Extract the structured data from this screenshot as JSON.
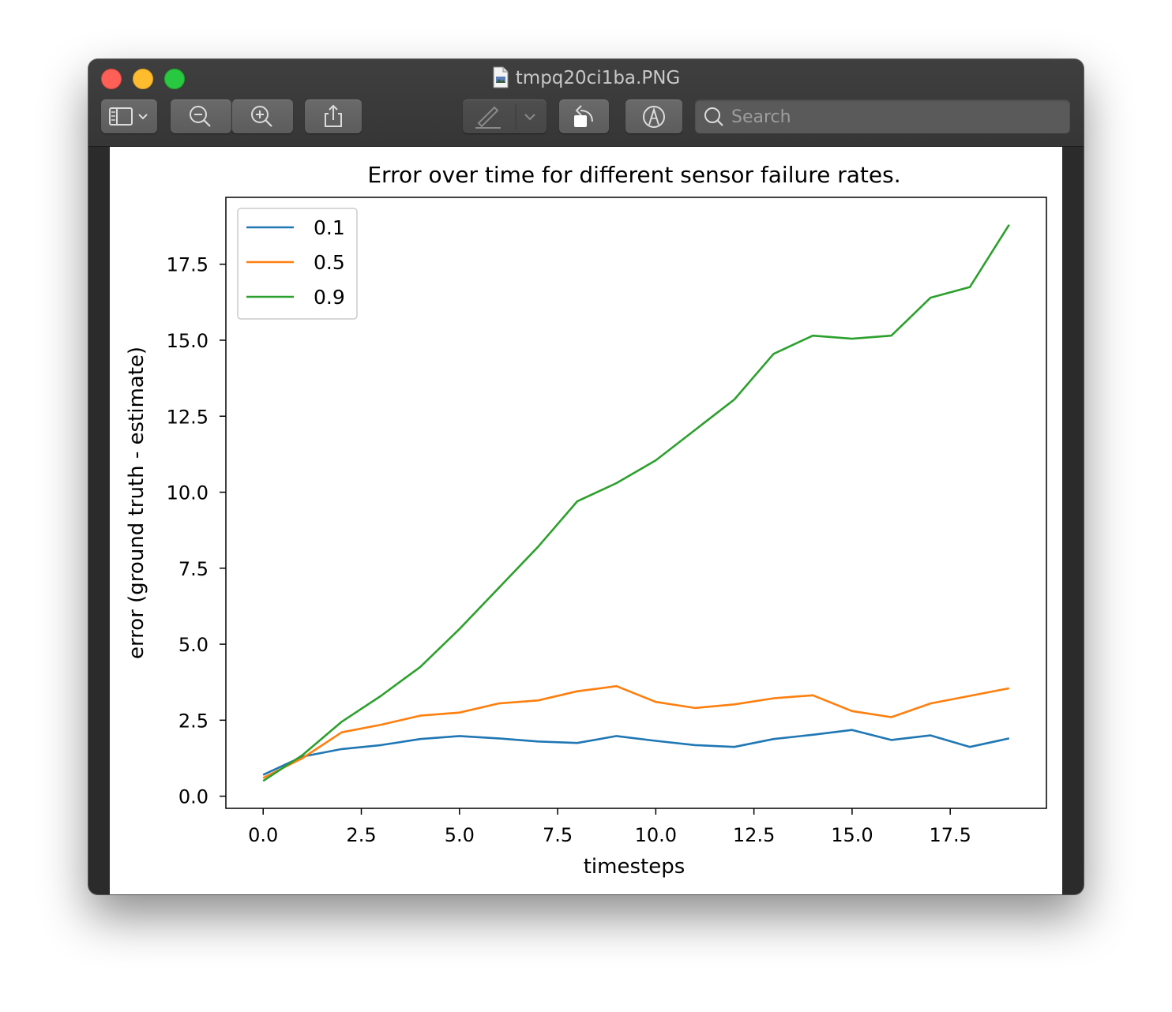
{
  "window": {
    "title": "tmpq20ci1ba.PNG"
  },
  "toolbar": {
    "search_placeholder": "Search",
    "buttons": [
      "sidebar-icon",
      "zoom-out-icon",
      "zoom-in-icon",
      "share-icon",
      "markup-pen-icon",
      "rotate-icon",
      "annotate-icon"
    ]
  },
  "chart_data": {
    "type": "line",
    "title": "Error over time for different sensor failure rates.",
    "xlabel": "timesteps",
    "ylabel": "error (ground truth - estimate)",
    "xlim": [
      -0.95,
      19.95
    ],
    "ylim": [
      -0.4,
      19.7
    ],
    "xticks": [
      "0.0",
      "2.5",
      "5.0",
      "7.5",
      "10.0",
      "12.5",
      "15.0",
      "17.5"
    ],
    "yticks": [
      "0.0",
      "2.5",
      "5.0",
      "7.5",
      "10.0",
      "12.5",
      "15.0",
      "17.5"
    ],
    "legend_position": "upper-left",
    "x": [
      0,
      1,
      2,
      3,
      4,
      5,
      6,
      7,
      8,
      9,
      10,
      11,
      12,
      13,
      14,
      15,
      16,
      17,
      18,
      19
    ],
    "series": [
      {
        "name": "0.1",
        "color": "#1f77b4",
        "values": [
          0.7,
          1.3,
          1.55,
          1.68,
          1.88,
          1.98,
          1.9,
          1.8,
          1.75,
          1.98,
          1.82,
          1.68,
          1.62,
          1.88,
          2.02,
          2.18,
          1.85,
          2.0,
          1.62,
          1.9
        ]
      },
      {
        "name": "0.5",
        "color": "#ff7f0e",
        "values": [
          0.6,
          1.25,
          2.1,
          2.35,
          2.65,
          2.75,
          3.05,
          3.15,
          3.45,
          3.62,
          3.1,
          2.9,
          3.02,
          3.22,
          3.32,
          2.8,
          2.6,
          3.05,
          3.3,
          3.55
        ]
      },
      {
        "name": "0.9",
        "color": "#2ca02c",
        "values": [
          0.5,
          1.35,
          2.45,
          3.3,
          4.25,
          5.5,
          6.85,
          8.2,
          9.7,
          10.3,
          11.05,
          12.05,
          13.05,
          14.55,
          15.15,
          15.05,
          15.15,
          16.4,
          16.75,
          18.8
        ]
      }
    ]
  }
}
